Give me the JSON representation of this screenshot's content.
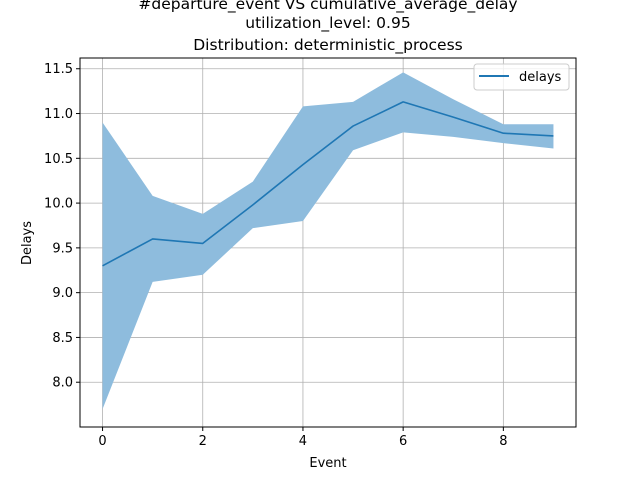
{
  "chart_data": {
    "type": "line",
    "title_lines": [
      "#departure_event VS cumulative_average_delay",
      "utilization_level: 0.95",
      "Distribution: deterministic_process"
    ],
    "xlabel": "Event",
    "ylabel": "Delays",
    "xlim": [
      -0.45,
      9.45
    ],
    "ylim": [
      7.5,
      11.62
    ],
    "x_ticks": [
      0,
      2,
      4,
      6,
      8
    ],
    "x_tick_labels": [
      "0",
      "2",
      "4",
      "6",
      "8"
    ],
    "y_ticks": [
      8.0,
      8.5,
      9.0,
      9.5,
      10.0,
      10.5,
      11.0,
      11.5
    ],
    "y_tick_labels": [
      "8.0",
      "8.5",
      "9.0",
      "9.5",
      "10.0",
      "10.5",
      "11.0",
      "11.5"
    ],
    "grid": true,
    "legend_position": "top-right",
    "series": [
      {
        "name": "delays",
        "color": "#1f77b4",
        "x": [
          0,
          1,
          2,
          3,
          4,
          5,
          6,
          7,
          8,
          9
        ],
        "values": [
          9.3,
          9.6,
          9.55,
          9.98,
          10.43,
          10.86,
          11.13,
          10.96,
          10.78,
          10.75
        ],
        "band_upper": [
          10.9,
          10.08,
          9.88,
          10.24,
          11.08,
          11.13,
          11.46,
          11.16,
          10.88,
          10.88
        ],
        "band_lower": [
          7.7,
          9.12,
          9.2,
          9.72,
          9.8,
          10.59,
          10.79,
          10.74,
          10.67,
          10.61
        ],
        "band_color": "#8ebcdd"
      }
    ]
  }
}
